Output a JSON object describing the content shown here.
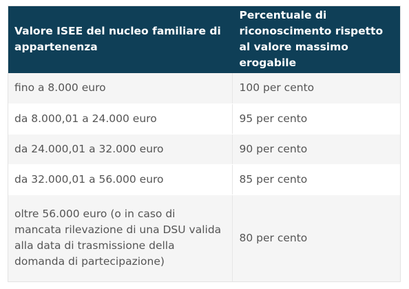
{
  "table": {
    "headers": [
      "Valore ISEE del nucleo familiare di appartenenza",
      "Percentuale di riconoscimento rispetto al valore massimo erogabile"
    ],
    "rows": [
      {
        "range": "fino a 8.000 euro",
        "percent": "100 per cento"
      },
      {
        "range": "da 8.000,01 a 24.000 euro",
        "percent": "95 per cento"
      },
      {
        "range": "da 24.000,01 a 32.000 euro",
        "percent": "90 per cento"
      },
      {
        "range": "da 32.000,01 a 56.000 euro",
        "percent": "85 per cento"
      },
      {
        "range": "oltre 56.000 euro (o in caso di mancata rilevazione di una DSU valida alla data di trasmissione della domanda di partecipazione)",
        "percent": "80 per cento"
      }
    ]
  },
  "colors": {
    "header_bg": "#0f3f57",
    "header_text": "#ffffff",
    "row_alt_bg": "#f5f5f5",
    "body_text": "#555555"
  }
}
